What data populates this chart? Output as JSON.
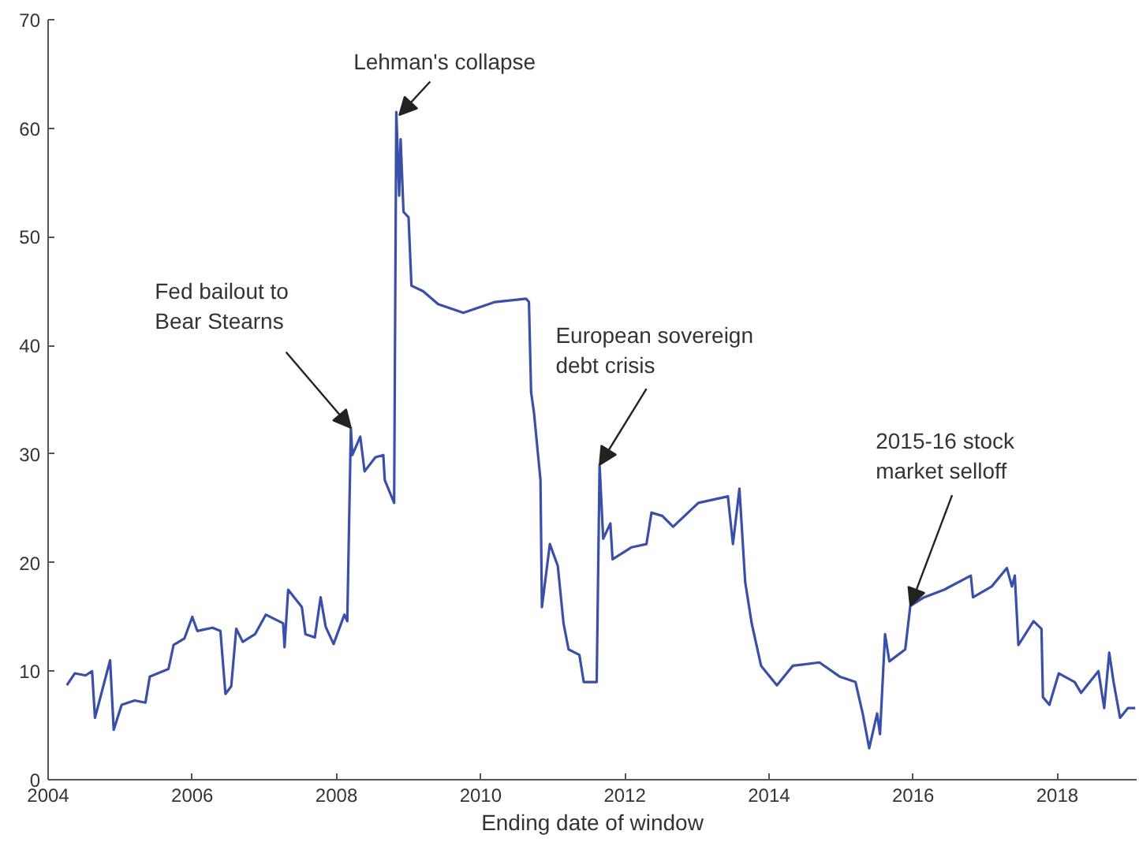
{
  "chart_data": {
    "type": "line",
    "xlabel": "Ending date of window",
    "xlim": [
      2004,
      2019.1
    ],
    "ylim": [
      0,
      70
    ],
    "xticks": [
      2004,
      2006,
      2008,
      2010,
      2012,
      2014,
      2016,
      2018
    ],
    "yticks": [
      0,
      10,
      20,
      30,
      40,
      50,
      60,
      70
    ],
    "grid": false,
    "marker": "none",
    "line_style": "solid",
    "annotations": [
      {
        "text": "Fed bailout to\nBear Stearns",
        "x": 2008.2,
        "y": 32.4
      },
      {
        "text": "Lehman's collapse",
        "x": 2008.87,
        "y": 61.2
      },
      {
        "text": "European sovereign\ndebt crisis",
        "x": 2011.65,
        "y": 29.0
      },
      {
        "text": "2015-16 stock\nmarket selloff",
        "x": 2015.96,
        "y": 16.0
      }
    ],
    "series": [
      {
        "color": "#3a4fa8",
        "x": [
          2004.26,
          2004.37,
          2004.52,
          2004.61,
          2004.65,
          2004.86,
          2004.91,
          2005.02,
          2005.2,
          2005.35,
          2005.41,
          2005.67,
          2005.74,
          2005.89,
          2006.0,
          2006.07,
          2006.28,
          2006.39,
          2006.46,
          2006.54,
          2006.61,
          2006.7,
          2006.87,
          2007.02,
          2007.26,
          2007.28,
          2007.33,
          2007.52,
          2007.57,
          2007.7,
          2007.78,
          2007.85,
          2007.96,
          2008.11,
          2008.15,
          2008.2,
          2008.22,
          2008.33,
          2008.39,
          2008.54,
          2008.65,
          2008.67,
          2008.8,
          2008.83,
          2008.87,
          2008.89,
          2008.93,
          2009.0,
          2009.04,
          2009.2,
          2009.41,
          2009.76,
          2010.2,
          2010.63,
          2010.67,
          2010.7,
          2010.74,
          2010.83,
          2010.85,
          2010.96,
          2011.07,
          2011.15,
          2011.22,
          2011.37,
          2011.43,
          2011.61,
          2011.65,
          2011.7,
          2011.8,
          2011.83,
          2012.09,
          2012.3,
          2012.37,
          2012.52,
          2012.67,
          2013.02,
          2013.43,
          2013.5,
          2013.59,
          2013.67,
          2013.76,
          2013.89,
          2014.11,
          2014.33,
          2014.7,
          2014.98,
          2015.2,
          2015.3,
          2015.39,
          2015.5,
          2015.54,
          2015.61,
          2015.67,
          2015.89,
          2015.96,
          2016.15,
          2016.43,
          2016.8,
          2016.83,
          2017.09,
          2017.3,
          2017.37,
          2017.41,
          2017.46,
          2017.67,
          2017.78,
          2017.8,
          2017.89,
          2018.02,
          2018.24,
          2018.33,
          2018.57,
          2018.65,
          2018.72,
          2018.78,
          2018.87,
          2018.98,
          2019.08
        ],
        "values": [
          8.7,
          9.8,
          9.6,
          10.0,
          5.7,
          11.0,
          4.6,
          6.9,
          7.3,
          7.1,
          9.5,
          10.2,
          12.4,
          13.0,
          15.0,
          13.7,
          14.0,
          13.7,
          7.9,
          8.6,
          13.9,
          12.7,
          13.4,
          15.2,
          14.4,
          12.2,
          17.5,
          15.9,
          13.4,
          13.1,
          16.8,
          14.1,
          12.5,
          15.2,
          14.6,
          32.4,
          29.9,
          31.6,
          28.4,
          29.7,
          29.9,
          27.6,
          25.5,
          61.5,
          53.8,
          59.0,
          52.3,
          51.8,
          45.5,
          45.0,
          43.8,
          43.0,
          44.0,
          44.3,
          44.0,
          35.7,
          33.8,
          27.6,
          15.9,
          21.7,
          19.7,
          14.4,
          12.0,
          11.5,
          9.0,
          9.0,
          29.0,
          22.2,
          23.6,
          20.3,
          21.4,
          21.7,
          24.6,
          24.3,
          23.3,
          25.5,
          26.1,
          21.7,
          26.8,
          18.2,
          14.4,
          10.5,
          8.7,
          10.5,
          10.8,
          9.5,
          9.0,
          6.1,
          2.9,
          6.1,
          4.2,
          13.4,
          10.9,
          12.0,
          16.0,
          16.8,
          17.5,
          18.8,
          16.8,
          17.8,
          19.5,
          17.8,
          18.8,
          12.4,
          14.6,
          13.9,
          7.6,
          6.9,
          9.8,
          9.0,
          8.0,
          10.0,
          6.6,
          11.7,
          9.0,
          5.7,
          6.6,
          6.6
        ]
      }
    ]
  }
}
